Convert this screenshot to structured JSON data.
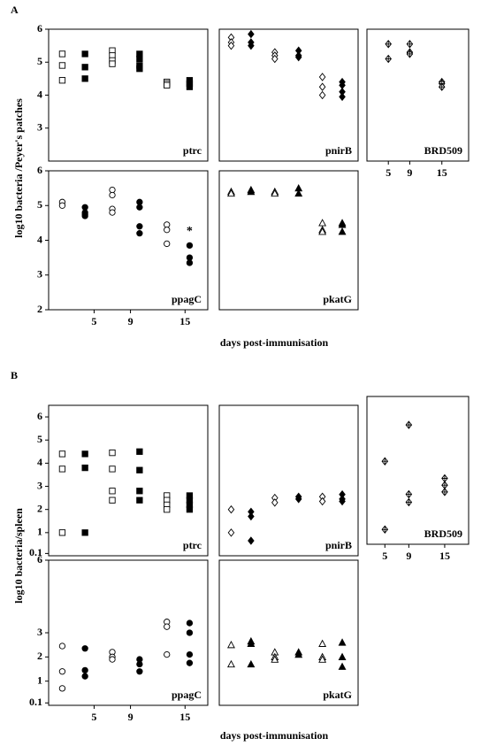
{
  "figure": {
    "sections": [
      {
        "letter": "A",
        "ylabel": "log10 bacteria /Peyer's patches",
        "xlabel": "days post-immunisation"
      },
      {
        "letter": "B",
        "ylabel": "log10 bacteria/spleen",
        "xlabel": "days post-immunisation"
      }
    ]
  },
  "chart_data": [
    {
      "type": "scatter",
      "label": "ptrc",
      "xlim": [
        0,
        17.5
      ],
      "ylim": [
        2,
        6
      ],
      "yticks": [
        3,
        4,
        5,
        6
      ],
      "series": [
        {
          "marker": "square",
          "filled": false,
          "color": "#000000",
          "x": [
            1.5,
            1.5,
            1.5,
            7,
            7,
            7,
            7,
            13,
            13,
            13
          ],
          "values": [
            5.25,
            4.9,
            4.45,
            5.35,
            5.2,
            5.05,
            4.95,
            4.4,
            4.35,
            4.3
          ]
        },
        {
          "marker": "square",
          "filled": true,
          "color": "#000000",
          "x": [
            4,
            4,
            4,
            10,
            10,
            10,
            10,
            15.5,
            15.5,
            15.5
          ],
          "values": [
            5.25,
            4.85,
            4.5,
            5.25,
            5.1,
            4.9,
            4.8,
            4.45,
            4.35,
            4.25
          ]
        }
      ]
    },
    {
      "type": "scatter",
      "label": "pnirB",
      "xlim": [
        0,
        17.5
      ],
      "ylim": [
        2,
        6
      ],
      "series": [
        {
          "marker": "diamond",
          "filled": false,
          "color": "#000000",
          "x": [
            1.5,
            1.5,
            1.5,
            7,
            7,
            7,
            13,
            13,
            13
          ],
          "values": [
            5.75,
            5.6,
            5.5,
            5.3,
            5.2,
            5.1,
            4.55,
            4.25,
            4.0
          ]
        },
        {
          "marker": "diamond",
          "filled": true,
          "color": "#000000",
          "x": [
            4,
            4,
            4,
            10,
            10,
            10,
            15.5,
            15.5,
            15.5,
            15.5
          ],
          "values": [
            5.85,
            5.6,
            5.5,
            5.35,
            5.2,
            5.15,
            4.4,
            4.3,
            4.1,
            3.95
          ]
        }
      ]
    },
    {
      "type": "scatter",
      "label": "BRD509",
      "xlim": [
        1,
        20
      ],
      "ylim": [
        2,
        6
      ],
      "xticks": [
        5,
        9,
        15
      ],
      "series": [
        {
          "marker": "diamond-cross",
          "filled": false,
          "color": "#000000",
          "x": [
            5,
            5,
            9,
            9,
            9,
            15,
            15,
            15
          ],
          "values": [
            5.55,
            5.1,
            5.55,
            5.3,
            5.25,
            4.4,
            4.35,
            4.25
          ]
        }
      ]
    },
    {
      "type": "scatter",
      "label": "ppagC",
      "xlim": [
        0,
        17.5
      ],
      "ylim": [
        2,
        6
      ],
      "yticks": [
        2,
        3,
        4,
        5,
        6
      ],
      "xticks": [
        5,
        9,
        15
      ],
      "annotations": [
        {
          "text": "*",
          "x": 15.5,
          "y": 4.25
        }
      ],
      "series": [
        {
          "marker": "circle",
          "filled": false,
          "color": "#000000",
          "x": [
            1.5,
            1.5,
            7,
            7,
            7,
            7,
            13,
            13,
            13
          ],
          "values": [
            5.1,
            5.0,
            5.45,
            5.3,
            4.9,
            4.8,
            4.45,
            4.3,
            3.9
          ]
        },
        {
          "marker": "circle",
          "filled": true,
          "color": "#000000",
          "x": [
            4,
            4,
            4,
            4,
            10,
            10,
            10,
            10,
            15.5,
            15.5,
            15.5
          ],
          "values": [
            4.95,
            4.8,
            4.75,
            4.7,
            5.1,
            4.95,
            4.4,
            4.2,
            3.85,
            3.5,
            3.35
          ]
        }
      ]
    },
    {
      "type": "scatter",
      "label": "pkatG",
      "xlim": [
        0,
        17.5
      ],
      "ylim": [
        2,
        6
      ],
      "series": [
        {
          "marker": "triangle",
          "filled": false,
          "color": "#000000",
          "x": [
            1.5,
            1.5,
            7,
            7,
            13,
            13,
            13
          ],
          "values": [
            5.4,
            5.35,
            5.4,
            5.35,
            4.5,
            4.3,
            4.25
          ]
        },
        {
          "marker": "triangle",
          "filled": true,
          "color": "#000000",
          "x": [
            4,
            4,
            10,
            10,
            15.5,
            15.5,
            15.5
          ],
          "values": [
            5.45,
            5.4,
            5.5,
            5.35,
            4.5,
            4.45,
            4.25
          ]
        }
      ]
    },
    {
      "type": "scatter",
      "label": "ptrc",
      "xlim": [
        0,
        17.5
      ],
      "ylim": [
        0,
        6.5
      ],
      "yticks": [
        0.1,
        1,
        2,
        3,
        4,
        5,
        6
      ],
      "series": [
        {
          "marker": "square",
          "filled": false,
          "color": "#000000",
          "x": [
            1.5,
            1.5,
            1.5,
            7,
            7,
            7,
            7,
            13,
            13,
            13,
            13
          ],
          "values": [
            4.4,
            3.75,
            1.0,
            4.45,
            3.75,
            2.8,
            2.4,
            2.6,
            2.4,
            2.2,
            2.0
          ]
        },
        {
          "marker": "square",
          "filled": true,
          "color": "#000000",
          "x": [
            4,
            4,
            4,
            10,
            10,
            10,
            10,
            15.5,
            15.5,
            15.5,
            15.5
          ],
          "values": [
            4.4,
            3.8,
            1.0,
            4.5,
            3.7,
            2.8,
            2.4,
            2.6,
            2.4,
            2.2,
            2.0
          ]
        }
      ]
    },
    {
      "type": "scatter",
      "label": "pnirB",
      "xlim": [
        0,
        17.5
      ],
      "ylim": [
        0,
        6.5
      ],
      "series": [
        {
          "marker": "diamond",
          "filled": false,
          "color": "#000000",
          "x": [
            1.5,
            1.5,
            7,
            7,
            13,
            13
          ],
          "values": [
            2.0,
            1.0,
            2.5,
            2.3,
            2.55,
            2.35
          ]
        },
        {
          "marker": "diamond",
          "filled": true,
          "color": "#000000",
          "x": [
            4,
            4,
            4,
            10,
            10,
            15.5,
            15.5,
            15.5
          ],
          "values": [
            1.9,
            1.7,
            0.65,
            2.55,
            2.45,
            2.65,
            2.45,
            2.35
          ]
        }
      ]
    },
    {
      "type": "scatter",
      "label": "BRD509",
      "xlim": [
        2,
        19
      ],
      "ylim": [
        0,
        6.5
      ],
      "xticks": [
        5,
        9,
        15
      ],
      "series": [
        {
          "marker": "diamond-cross",
          "filled": false,
          "color": "#000000",
          "x": [
            5,
            5,
            9,
            9,
            9,
            15,
            15,
            15
          ],
          "values": [
            3.65,
            0.65,
            5.25,
            2.2,
            1.85,
            2.9,
            2.6,
            2.3
          ]
        }
      ]
    },
    {
      "type": "scatter",
      "label": "ppagC",
      "xlim": [
        0,
        17.5
      ],
      "ylim": [
        0,
        6
      ],
      "yticks": [
        0.1,
        1,
        2,
        3,
        6
      ],
      "xticks": [
        5,
        9,
        15
      ],
      "series": [
        {
          "marker": "circle",
          "filled": false,
          "color": "#000000",
          "x": [
            1.5,
            1.5,
            1.5,
            7,
            7,
            7,
            13,
            13,
            13
          ],
          "values": [
            2.45,
            1.4,
            0.7,
            2.2,
            2.0,
            1.9,
            3.45,
            3.25,
            2.1
          ]
        },
        {
          "marker": "circle",
          "filled": true,
          "color": "#000000",
          "x": [
            4,
            4,
            4,
            10,
            10,
            10,
            15.5,
            15.5,
            15.5,
            15.5
          ],
          "values": [
            2.35,
            1.45,
            1.2,
            1.9,
            1.7,
            1.4,
            3.4,
            3.0,
            2.1,
            1.75
          ]
        }
      ]
    },
    {
      "type": "scatter",
      "label": "pkatG",
      "xlim": [
        0,
        17.5
      ],
      "ylim": [
        0,
        6
      ],
      "series": [
        {
          "marker": "triangle",
          "filled": false,
          "color": "#000000",
          "x": [
            1.5,
            1.5,
            7,
            7,
            7,
            13,
            13,
            13
          ],
          "values": [
            2.5,
            1.7,
            2.2,
            2.0,
            1.9,
            2.55,
            2.0,
            1.9
          ]
        },
        {
          "marker": "triangle",
          "filled": true,
          "color": "#000000",
          "x": [
            4,
            4,
            4,
            10,
            10,
            15.5,
            15.5,
            15.5
          ],
          "values": [
            2.65,
            2.55,
            1.7,
            2.2,
            2.1,
            2.6,
            2.0,
            1.6
          ]
        }
      ]
    }
  ]
}
